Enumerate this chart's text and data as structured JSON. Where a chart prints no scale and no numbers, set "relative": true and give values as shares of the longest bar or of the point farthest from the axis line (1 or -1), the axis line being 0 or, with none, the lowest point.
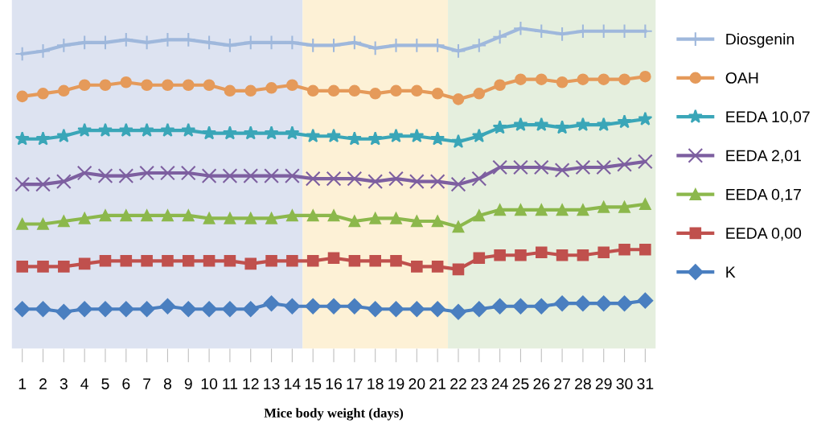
{
  "chart_data": {
    "type": "line",
    "relative": true,
    "xlabel": "Mice body weight (days)",
    "categories": [
      "1",
      "2",
      "3",
      "4",
      "5",
      "6",
      "7",
      "8",
      "9",
      "10",
      "11",
      "12",
      "13",
      "14",
      "15",
      "16",
      "17",
      "18",
      "19",
      "20",
      "21",
      "22",
      "23",
      "24",
      "25",
      "26",
      "27",
      "28",
      "29",
      "30",
      "31"
    ],
    "grid": false,
    "legend": "right",
    "line_style": "solid",
    "bands": [
      {
        "axis": "x",
        "from": "1",
        "to": "14",
        "color": "#dde3f1"
      },
      {
        "axis": "x",
        "from": "15",
        "to": "21",
        "color": "#fdf1d6"
      },
      {
        "axis": "x",
        "from": "22",
        "to": "31",
        "color": "#e5efde"
      }
    ],
    "series": [
      {
        "name": "Diosgenin",
        "color": "#9fb8dc",
        "marker": "cross",
        "values": [
          0.91,
          0.92,
          0.94,
          0.95,
          0.95,
          0.96,
          0.95,
          0.96,
          0.96,
          0.95,
          0.94,
          0.95,
          0.95,
          0.95,
          0.94,
          0.94,
          0.95,
          0.93,
          0.94,
          0.94,
          0.94,
          0.92,
          0.94,
          0.97,
          1.0,
          0.99,
          0.98,
          0.99,
          0.99,
          0.99,
          0.99
        ]
      },
      {
        "name": "OAH",
        "color": "#e59a5a",
        "marker": "circle",
        "values": [
          0.76,
          0.77,
          0.78,
          0.8,
          0.8,
          0.81,
          0.8,
          0.8,
          0.8,
          0.8,
          0.78,
          0.78,
          0.79,
          0.8,
          0.78,
          0.78,
          0.78,
          0.77,
          0.78,
          0.78,
          0.77,
          0.75,
          0.77,
          0.8,
          0.82,
          0.82,
          0.81,
          0.82,
          0.82,
          0.82,
          0.83
        ]
      },
      {
        "name": "EEDA 10,07",
        "color": "#3aa6b8",
        "marker": "star",
        "values": [
          0.61,
          0.61,
          0.62,
          0.64,
          0.64,
          0.64,
          0.64,
          0.64,
          0.64,
          0.63,
          0.63,
          0.63,
          0.63,
          0.63,
          0.62,
          0.62,
          0.61,
          0.61,
          0.62,
          0.62,
          0.61,
          0.6,
          0.62,
          0.65,
          0.66,
          0.66,
          0.65,
          0.66,
          0.66,
          0.67,
          0.68
        ]
      },
      {
        "name": "EEDA 2,01",
        "color": "#7d5fa0",
        "marker": "x",
        "values": [
          0.45,
          0.45,
          0.46,
          0.49,
          0.48,
          0.48,
          0.49,
          0.49,
          0.49,
          0.48,
          0.48,
          0.48,
          0.48,
          0.48,
          0.47,
          0.47,
          0.47,
          0.46,
          0.47,
          0.46,
          0.46,
          0.45,
          0.47,
          0.51,
          0.51,
          0.51,
          0.5,
          0.51,
          0.51,
          0.52,
          0.53
        ]
      },
      {
        "name": "EEDA 0,17",
        "color": "#8cb84c",
        "marker": "triangle",
        "values": [
          0.31,
          0.31,
          0.32,
          0.33,
          0.34,
          0.34,
          0.34,
          0.34,
          0.34,
          0.33,
          0.33,
          0.33,
          0.33,
          0.34,
          0.34,
          0.34,
          0.32,
          0.33,
          0.33,
          0.32,
          0.32,
          0.3,
          0.34,
          0.36,
          0.36,
          0.36,
          0.36,
          0.36,
          0.37,
          0.37,
          0.38
        ]
      },
      {
        "name": "EEDA 0,00",
        "color": "#c0504d",
        "marker": "square",
        "values": [
          0.16,
          0.16,
          0.16,
          0.17,
          0.18,
          0.18,
          0.18,
          0.18,
          0.18,
          0.18,
          0.18,
          0.17,
          0.18,
          0.18,
          0.18,
          0.19,
          0.18,
          0.18,
          0.18,
          0.16,
          0.16,
          0.15,
          0.19,
          0.2,
          0.2,
          0.21,
          0.2,
          0.2,
          0.21,
          0.22,
          0.22
        ]
      },
      {
        "name": "K",
        "color": "#4a7fc0",
        "marker": "diamond",
        "values": [
          0.01,
          0.01,
          0.0,
          0.01,
          0.01,
          0.01,
          0.01,
          0.02,
          0.01,
          0.01,
          0.01,
          0.01,
          0.03,
          0.02,
          0.02,
          0.02,
          0.02,
          0.01,
          0.01,
          0.01,
          0.01,
          0.0,
          0.01,
          0.02,
          0.02,
          0.02,
          0.03,
          0.03,
          0.03,
          0.03,
          0.04
        ]
      }
    ]
  }
}
